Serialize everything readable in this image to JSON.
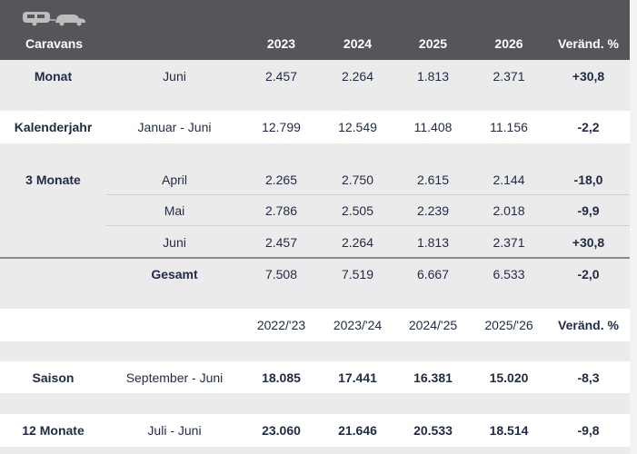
{
  "header": {
    "title": "Caravans",
    "icons": [
      "caravan-icon",
      "car-icon"
    ],
    "years": [
      "2023",
      "2024",
      "2025",
      "2026"
    ],
    "change": "Veränd. %"
  },
  "rows": {
    "monat": {
      "label": "Monat",
      "period": "Juni",
      "values": [
        "2.457",
        "2.264",
        "1.813",
        "2.371"
      ],
      "change": "+30,8"
    },
    "kalender": {
      "label": "Kalenderjahr",
      "period": "Januar - Juni",
      "values": [
        "12.799",
        "12.549",
        "11.408",
        "11.156"
      ],
      "change": "-2,2"
    },
    "drei1": {
      "label": "3 Monate",
      "period": "April",
      "values": [
        "2.265",
        "2.750",
        "2.615",
        "2.144"
      ],
      "change": "-18,0"
    },
    "drei2": {
      "period": "Mai",
      "values": [
        "2.786",
        "2.505",
        "2.239",
        "2.018"
      ],
      "change": "-9,9"
    },
    "drei3": {
      "period": "Juni",
      "values": [
        "2.457",
        "2.264",
        "1.813",
        "2.371"
      ],
      "change": "+30,8"
    },
    "gesamt": {
      "period": "Gesamt",
      "values": [
        "7.508",
        "7.519",
        "6.667",
        "6.533"
      ],
      "change": "-2,0"
    }
  },
  "season_header": {
    "years": [
      "2022/'23",
      "2023/'24",
      "2024/'25",
      "2025/'26"
    ],
    "change": "Veränd. %"
  },
  "season_rows": {
    "saison": {
      "label": "Saison",
      "period": "September - Juni",
      "values": [
        "18.085",
        "17.441",
        "16.381",
        "15.020"
      ],
      "change": "-8,3"
    },
    "zwoelf": {
      "label": "12 Monate",
      "period": "Juli - Juni",
      "values": [
        "23.060",
        "21.646",
        "20.533",
        "18.514"
      ],
      "change": "-9,8"
    }
  },
  "colors": {
    "header_bg": "#54565a",
    "band_bg": "#ebebeb",
    "text": "#1f2b44"
  }
}
